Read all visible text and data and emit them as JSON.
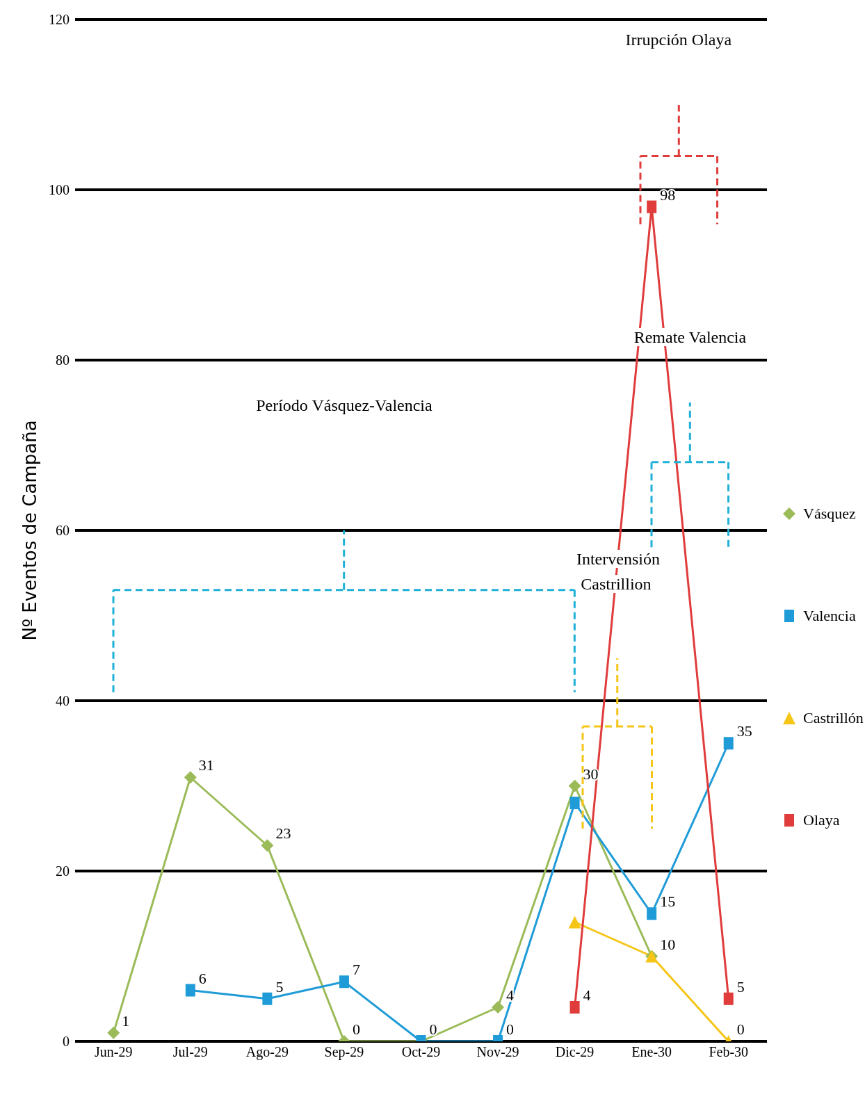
{
  "chart_data": {
    "type": "line",
    "ylabel": "Nº Eventos de Campaña",
    "categories": [
      "Jun-29",
      "Jul-29",
      "Ago-29",
      "Sep-29",
      "Oct-29",
      "Nov-29",
      "Dic-29",
      "Ene-30",
      "Feb-30"
    ],
    "series": [
      {
        "name": "Vásquez",
        "color": "#9bbb59",
        "marker": "diamond",
        "values": [
          1,
          31,
          23,
          0,
          0,
          4,
          30,
          10,
          null
        ],
        "value_labels": [
          "1",
          "31",
          "23",
          "0",
          "0",
          "4",
          "30",
          "10",
          null
        ]
      },
      {
        "name": "Valencia",
        "color": "#1f9bd7",
        "marker": "square",
        "values": [
          null,
          6,
          5,
          7,
          0,
          0,
          28,
          15,
          35
        ],
        "value_labels": [
          null,
          "6",
          "5",
          "7",
          "0",
          "0",
          null,
          "15",
          "35"
        ]
      },
      {
        "name": "Castrillón",
        "color": "#f5c518",
        "marker": "triangle",
        "values": [
          null,
          null,
          null,
          null,
          null,
          null,
          14,
          10,
          0
        ],
        "value_labels": [
          null,
          null,
          null,
          null,
          null,
          null,
          null,
          null,
          "0"
        ]
      },
      {
        "name": "Olaya",
        "color": "#e03c3c",
        "marker": "square",
        "values": [
          null,
          null,
          null,
          null,
          null,
          null,
          4,
          98,
          5
        ],
        "value_labels": [
          null,
          null,
          null,
          null,
          null,
          null,
          "4",
          "98",
          "5"
        ]
      }
    ],
    "ylim": [
      0,
      120
    ],
    "yticks": [
      0,
      20,
      40,
      60,
      80,
      100,
      120
    ],
    "grid": "y",
    "legend": "right",
    "annotations": [
      "Irrupción Olaya",
      "Remate Valencia",
      "Período Vásquez-Valencia",
      "Intervensión Castrillion"
    ]
  }
}
